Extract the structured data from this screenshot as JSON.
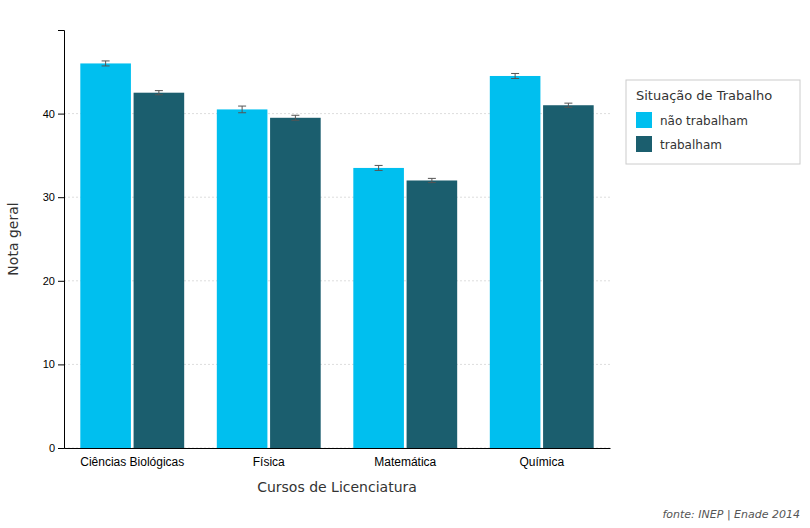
{
  "chart_data": {
    "type": "bar",
    "categories": [
      "Ciências Biológicas",
      "Física",
      "Matemática",
      "Química"
    ],
    "series": [
      {
        "name": "não trabalham",
        "color": "#00BFEF",
        "values": [
          46.0,
          40.5,
          33.5,
          44.5
        ],
        "errors": [
          0.3,
          0.4,
          0.3,
          0.3
        ]
      },
      {
        "name": "trabalham",
        "color": "#1B5E6E",
        "values": [
          42.5,
          39.5,
          32.0,
          41.0
        ],
        "errors": [
          0.25,
          0.3,
          0.25,
          0.25
        ]
      }
    ],
    "xlabel": "Cursos de Licenciatura",
    "ylabel": "Nota geral",
    "legend_title": "Situação de Trabalho",
    "annotations": [
      "fonte: INEP | Enade 2014"
    ],
    "ylim": [
      0,
      50
    ],
    "yticks": [
      0,
      10,
      20,
      30,
      40
    ],
    "grid": true,
    "legend": "right"
  }
}
